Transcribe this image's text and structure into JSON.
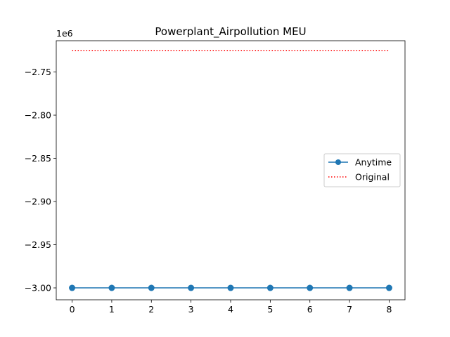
{
  "chart_data": {
    "type": "line",
    "title": "Powerplant_Airpollution MEU",
    "xlabel": "",
    "ylabel": "",
    "y_offset_label": "1e6",
    "x_ticks": [
      0,
      1,
      2,
      3,
      4,
      5,
      6,
      7,
      8
    ],
    "y_ticks": [
      -3.0,
      -2.95,
      -2.9,
      -2.85,
      -2.8,
      -2.75
    ],
    "y_tick_labels": [
      "−3.00",
      "−2.95",
      "−2.90",
      "−2.85",
      "−2.80",
      "−2.75"
    ],
    "xlim": [
      -0.4,
      8.4
    ],
    "ylim": [
      -3.0138,
      -2.7138
    ],
    "grid": false,
    "legend_position": "center-right",
    "series": [
      {
        "name": "Anytime",
        "style": "solid-line-circle-markers",
        "color": "#1f77b4",
        "x": [
          0,
          1,
          2,
          3,
          4,
          5,
          6,
          7,
          8
        ],
        "values": [
          -3.0,
          -3.0,
          -3.0,
          -3.0,
          -3.0,
          -3.0,
          -3.0,
          -3.0,
          -3.0
        ]
      },
      {
        "name": "Original",
        "style": "dotted-line",
        "color": "#ff0000",
        "x": [
          0,
          8
        ],
        "values": [
          -2.725,
          -2.725
        ]
      }
    ]
  }
}
